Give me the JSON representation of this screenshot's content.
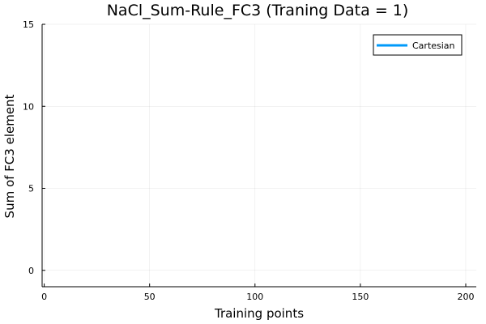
{
  "chart_data": {
    "type": "line",
    "title": "NaCl_Sum-Rule_FC3 (Traning Data = 1)",
    "xlabel": "Training points",
    "ylabel": "Sum of FC3 element",
    "xlim": [
      -1,
      205
    ],
    "ylim": [
      -1,
      15
    ],
    "xticks": [
      0,
      50,
      100,
      150,
      200
    ],
    "yticks": [
      0,
      5,
      10,
      15
    ],
    "grid": true,
    "legend_position": "top-right",
    "series": [
      {
        "name": "Cartesian",
        "color": "#009AFA",
        "x": [],
        "y": []
      }
    ]
  }
}
